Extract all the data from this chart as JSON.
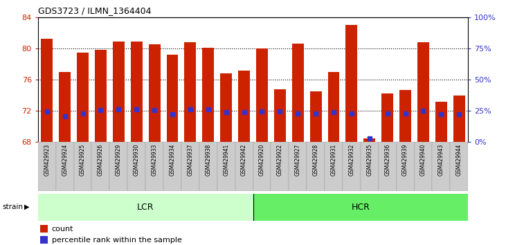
{
  "title": "GDS3723 / ILMN_1364404",
  "samples": [
    "GSM429923",
    "GSM429924",
    "GSM429925",
    "GSM429926",
    "GSM429929",
    "GSM429930",
    "GSM429933",
    "GSM429934",
    "GSM429937",
    "GSM429938",
    "GSM429941",
    "GSM429942",
    "GSM429920",
    "GSM429922",
    "GSM429927",
    "GSM429928",
    "GSM429931",
    "GSM429932",
    "GSM429935",
    "GSM429936",
    "GSM429939",
    "GSM429940",
    "GSM429943",
    "GSM429944"
  ],
  "count_values": [
    81.2,
    77.0,
    79.5,
    79.8,
    80.9,
    80.9,
    80.5,
    79.2,
    80.8,
    80.1,
    76.8,
    77.2,
    80.0,
    74.8,
    80.6,
    74.5,
    77.0,
    83.0,
    68.5,
    74.2,
    74.7,
    80.8,
    73.2,
    74.0
  ],
  "percentile_values": [
    71.95,
    71.3,
    71.7,
    72.1,
    72.15,
    72.2,
    72.1,
    71.55,
    72.2,
    72.15,
    71.8,
    71.85,
    71.95,
    71.95,
    71.7,
    71.7,
    71.8,
    71.7,
    68.5,
    71.65,
    71.65,
    72.0,
    71.6,
    71.6
  ],
  "lcr_count": 12,
  "hcr_count": 12,
  "ylim_left": [
    68,
    84
  ],
  "ylim_right": [
    0,
    100
  ],
  "yticks_left": [
    68,
    72,
    76,
    80,
    84
  ],
  "yticks_right": [
    0,
    25,
    50,
    75,
    100
  ],
  "yticklabels_right": [
    "0%",
    "25%",
    "50%",
    "75%",
    "100%"
  ],
  "bar_color": "#cc2200",
  "percentile_color": "#3333cc",
  "lcr_color": "#ccffcc",
  "hcr_color": "#66ee66",
  "axis_label_color_left": "#cc2200",
  "axis_label_color_right": "#3333cc",
  "tick_label_bg": "#cccccc",
  "gridline_yticks": [
    72,
    76,
    80
  ]
}
